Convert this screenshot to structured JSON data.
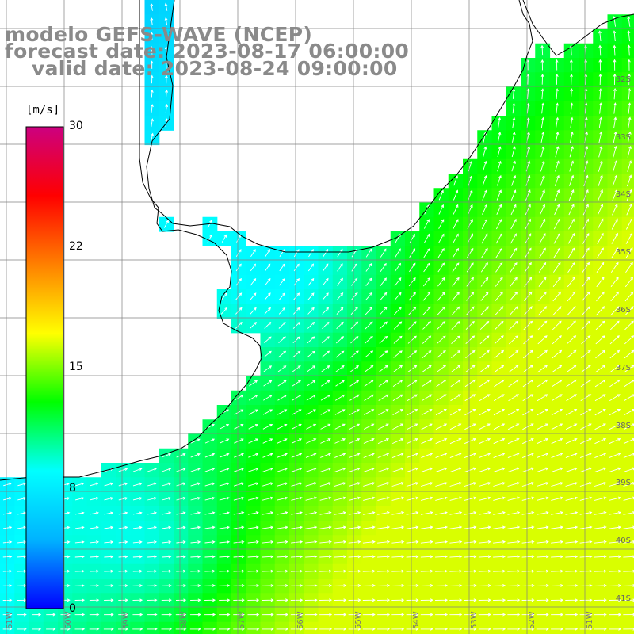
{
  "title": {
    "line1": "modelo GEFS-WAVE (NCEP)",
    "line2": "forecast date: 2023-08-17 06:00:00",
    "line3": "valid date: 2023-08-24 09:00:00"
  },
  "colorbar": {
    "unit": "[m/s]",
    "ticks": [
      "30",
      "22",
      "15",
      "8",
      "0"
    ],
    "min": 0,
    "max": 30,
    "colors": [
      "#0000ff",
      "#00b3ff",
      "#00ffff",
      "#00ff00",
      "#ffff00",
      "#ff8000",
      "#ff0000",
      "#cc0080"
    ]
  },
  "lat_labels": [
    "32S",
    "33S",
    "34S",
    "35S",
    "36S",
    "37S",
    "38S",
    "39S",
    "40S",
    "41S"
  ],
  "lon_labels": [
    "61W",
    "60W",
    "59W",
    "58W",
    "57W",
    "56W",
    "55W",
    "54W",
    "53W",
    "52W",
    "51W"
  ],
  "colors": {
    "land": "#ffffff",
    "coast": "#000000",
    "grid": "#808080",
    "arrows": "#ffffff",
    "title": "#8a8a8a"
  }
}
